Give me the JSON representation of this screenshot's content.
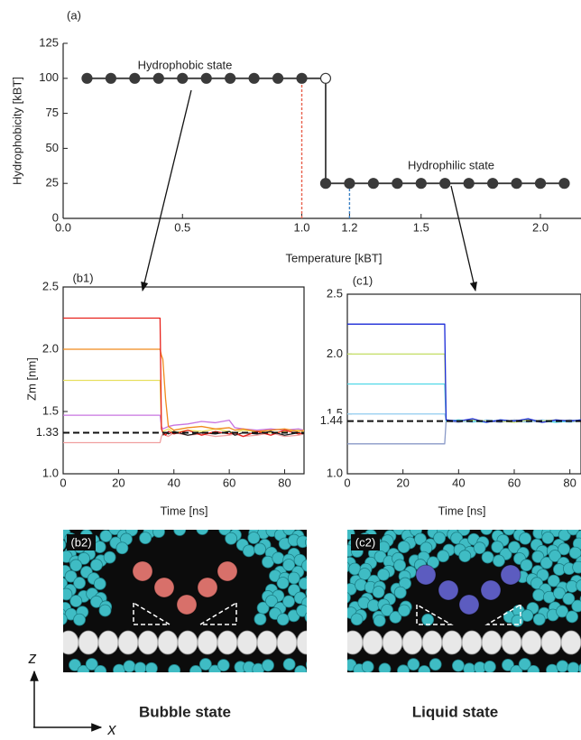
{
  "chart_data": [
    {
      "type": "line",
      "panel_label": "(a)",
      "xlabel": "Temperature [kBT]",
      "ylabel": "Hydrophobicity [kBT]",
      "xlim": [
        0,
        2.17
      ],
      "ylim": [
        0,
        125
      ],
      "xticks": [
        {
          "value": 0,
          "label": "0.0"
        },
        {
          "value": 0.5,
          "label": "0.5"
        },
        {
          "value": 1,
          "label": "1.0"
        },
        {
          "value": 1.2,
          "label": "1.2"
        },
        {
          "value": 1.5,
          "label": "1.5"
        },
        {
          "value": 2,
          "label": "2.0"
        }
      ],
      "yticks": [
        0,
        25,
        50,
        75,
        100,
        125
      ],
      "series": [
        {
          "name": "Hydrophobic state",
          "color": "#3a3a3a",
          "marker": "filled",
          "x": [
            0.1,
            0.2,
            0.3,
            0.4,
            0.5,
            0.6,
            0.7,
            0.8,
            0.9,
            1.0
          ],
          "values": [
            100,
            100,
            100,
            100,
            100,
            100,
            100,
            100,
            100,
            100
          ]
        },
        {
          "color": "#3a3a3a",
          "marker": "open",
          "x": [
            1.1
          ],
          "values": [
            100
          ]
        },
        {
          "name": "Hydrophilic state",
          "color": "#3a3a3a",
          "marker": "filled",
          "x": [
            1.1,
            1.2,
            1.3,
            1.4,
            1.5,
            1.6,
            1.7,
            1.8,
            1.9,
            2.0,
            2.1
          ],
          "values": [
            25,
            25,
            25,
            25,
            25,
            25,
            25,
            25,
            25,
            25,
            25
          ]
        }
      ],
      "reference_lines": [
        {
          "x": 1.0,
          "y": 100,
          "color": "#e8604c"
        },
        {
          "x": 1.2,
          "y": 25,
          "color": "#3a80c4"
        }
      ]
    },
    {
      "type": "line",
      "panel_label": "(b1)",
      "xlabel": "Time [ns]",
      "ylabel": "Zm [nm]",
      "xlim": [
        0,
        87
      ],
      "ylim": [
        1.0,
        2.5
      ],
      "xticks": [
        0,
        20,
        40,
        60,
        80
      ],
      "yticks": [
        {
          "value": 1.0,
          "label": "1.0"
        },
        {
          "value": 1.5,
          "label": "1.5"
        },
        {
          "value": 2.0,
          "label": "2.0"
        },
        {
          "value": 2.5,
          "label": "2.5"
        }
      ],
      "hline": 1.33,
      "x": [
        0,
        35,
        35.5,
        36,
        37,
        38,
        40,
        45,
        50,
        55,
        60,
        62,
        65,
        70,
        75,
        80,
        85,
        87
      ],
      "series": [
        {
          "color": "#f0a0a0",
          "values": [
            1.25,
            1.25,
            1.3,
            1.32,
            1.31,
            1.3,
            1.33,
            1.31,
            1.32,
            1.3,
            1.31,
            1.32,
            1.3,
            1.31,
            1.33,
            1.3,
            1.31,
            1.32
          ]
        },
        {
          "color": "#c874e0",
          "values": [
            1.47,
            1.47,
            1.38,
            1.36,
            1.37,
            1.38,
            1.39,
            1.4,
            1.42,
            1.41,
            1.43,
            1.37,
            1.36,
            1.35,
            1.36,
            1.35,
            1.36,
            1.35
          ]
        },
        {
          "color": "#e8e060",
          "values": [
            1.75,
            1.75,
            1.36,
            1.34,
            1.35,
            1.36,
            1.33,
            1.35,
            1.34,
            1.36,
            1.34,
            1.33,
            1.35,
            1.34,
            1.33,
            1.34,
            1.35,
            1.34
          ]
        },
        {
          "color": "#f08a1c",
          "values": [
            2.0,
            2.0,
            1.95,
            1.92,
            1.6,
            1.38,
            1.35,
            1.37,
            1.38,
            1.36,
            1.37,
            1.35,
            1.36,
            1.34,
            1.35,
            1.36,
            1.34,
            1.35
          ]
        },
        {
          "color": "#222222",
          "values": [
            null,
            null,
            null,
            1.31,
            1.33,
            1.32,
            1.34,
            1.31,
            1.33,
            1.32,
            1.34,
            1.31,
            1.33,
            1.32,
            1.34,
            1.31,
            1.33,
            1.32
          ]
        },
        {
          "color": "#e8221c",
          "values": [
            2.25,
            2.25,
            1.36,
            1.33,
            1.31,
            1.34,
            1.32,
            1.35,
            1.31,
            1.34,
            1.32,
            1.33,
            1.3,
            1.34,
            1.31,
            1.35,
            1.32,
            1.33
          ]
        }
      ]
    },
    {
      "type": "line",
      "panel_label": "(c1)",
      "xlabel": "Time [ns]",
      "xlim": [
        0,
        84
      ],
      "ylim": [
        1.0,
        2.5
      ],
      "xticks": [
        0,
        20,
        40,
        60,
        80
      ],
      "yticks": [
        {
          "value": 1.0,
          "label": "1.0"
        },
        {
          "value": 1.5,
          "label": "1.5"
        },
        {
          "value": 2.0,
          "label": "2.0"
        },
        {
          "value": 2.5,
          "label": "2.5"
        }
      ],
      "hline": 1.44,
      "x": [
        0,
        35,
        35.5,
        40,
        45,
        50,
        55,
        60,
        65,
        70,
        75,
        80,
        84
      ],
      "series": [
        {
          "color": "#8a9ac8",
          "values": [
            1.25,
            1.25,
            1.44,
            1.43,
            1.45,
            1.44,
            1.43,
            1.45,
            1.44,
            1.43,
            1.44,
            1.45,
            1.44
          ]
        },
        {
          "color": "#9ad0f0",
          "values": [
            1.5,
            1.5,
            1.45,
            1.44,
            1.43,
            1.45,
            1.44,
            1.44,
            1.43,
            1.45,
            1.44,
            1.43,
            1.44
          ]
        },
        {
          "color": "#50d8e8",
          "values": [
            1.75,
            1.75,
            1.44,
            1.45,
            1.44,
            1.43,
            1.45,
            1.44,
            1.45,
            1.44,
            1.43,
            1.44,
            1.45
          ]
        },
        {
          "color": "#c8e070",
          "values": [
            2.0,
            2.0,
            1.45,
            1.44,
            1.45,
            1.44,
            1.44,
            1.43,
            1.45,
            1.44,
            1.45,
            1.44,
            1.44
          ]
        },
        {
          "color": "#1a2ad8",
          "values": [
            2.25,
            2.25,
            1.45,
            1.44,
            1.46,
            1.43,
            1.45,
            1.44,
            1.46,
            1.43,
            1.45,
            1.44,
            1.45
          ]
        }
      ]
    }
  ],
  "images": [
    {
      "label": "(b2)",
      "caption": "Bubble state"
    },
    {
      "label": "(c2)",
      "caption": "Liquid state"
    }
  ],
  "axes_indicator": {
    "z": "z",
    "x": "x"
  }
}
